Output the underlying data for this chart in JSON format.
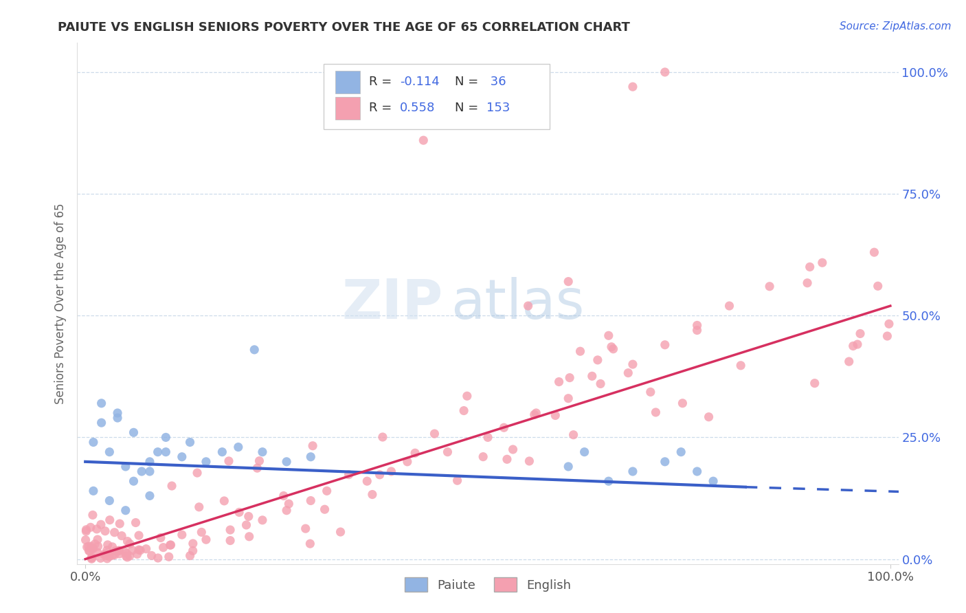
{
  "title": "PAIUTE VS ENGLISH SENIORS POVERTY OVER THE AGE OF 65 CORRELATION CHART",
  "source_text": "Source: ZipAtlas.com",
  "ylabel": "Seniors Poverty Over the Age of 65",
  "paiute_color": "#92b4e3",
  "english_color": "#f4a0b0",
  "trend_paiute_color": "#3a5fc8",
  "trend_english_color": "#d63060",
  "background_color": "#ffffff",
  "grid_color": "#c8d8e8",
  "watermark_zip": "ZIP",
  "watermark_atlas": "atlas",
  "title_color": "#333333",
  "source_color": "#4169e1",
  "ylabel_color": "#666666",
  "tick_color": "#555555",
  "right_tick_color": "#4169e1",
  "legend_text_color": "#333333",
  "legend_value_color": "#4169e1"
}
